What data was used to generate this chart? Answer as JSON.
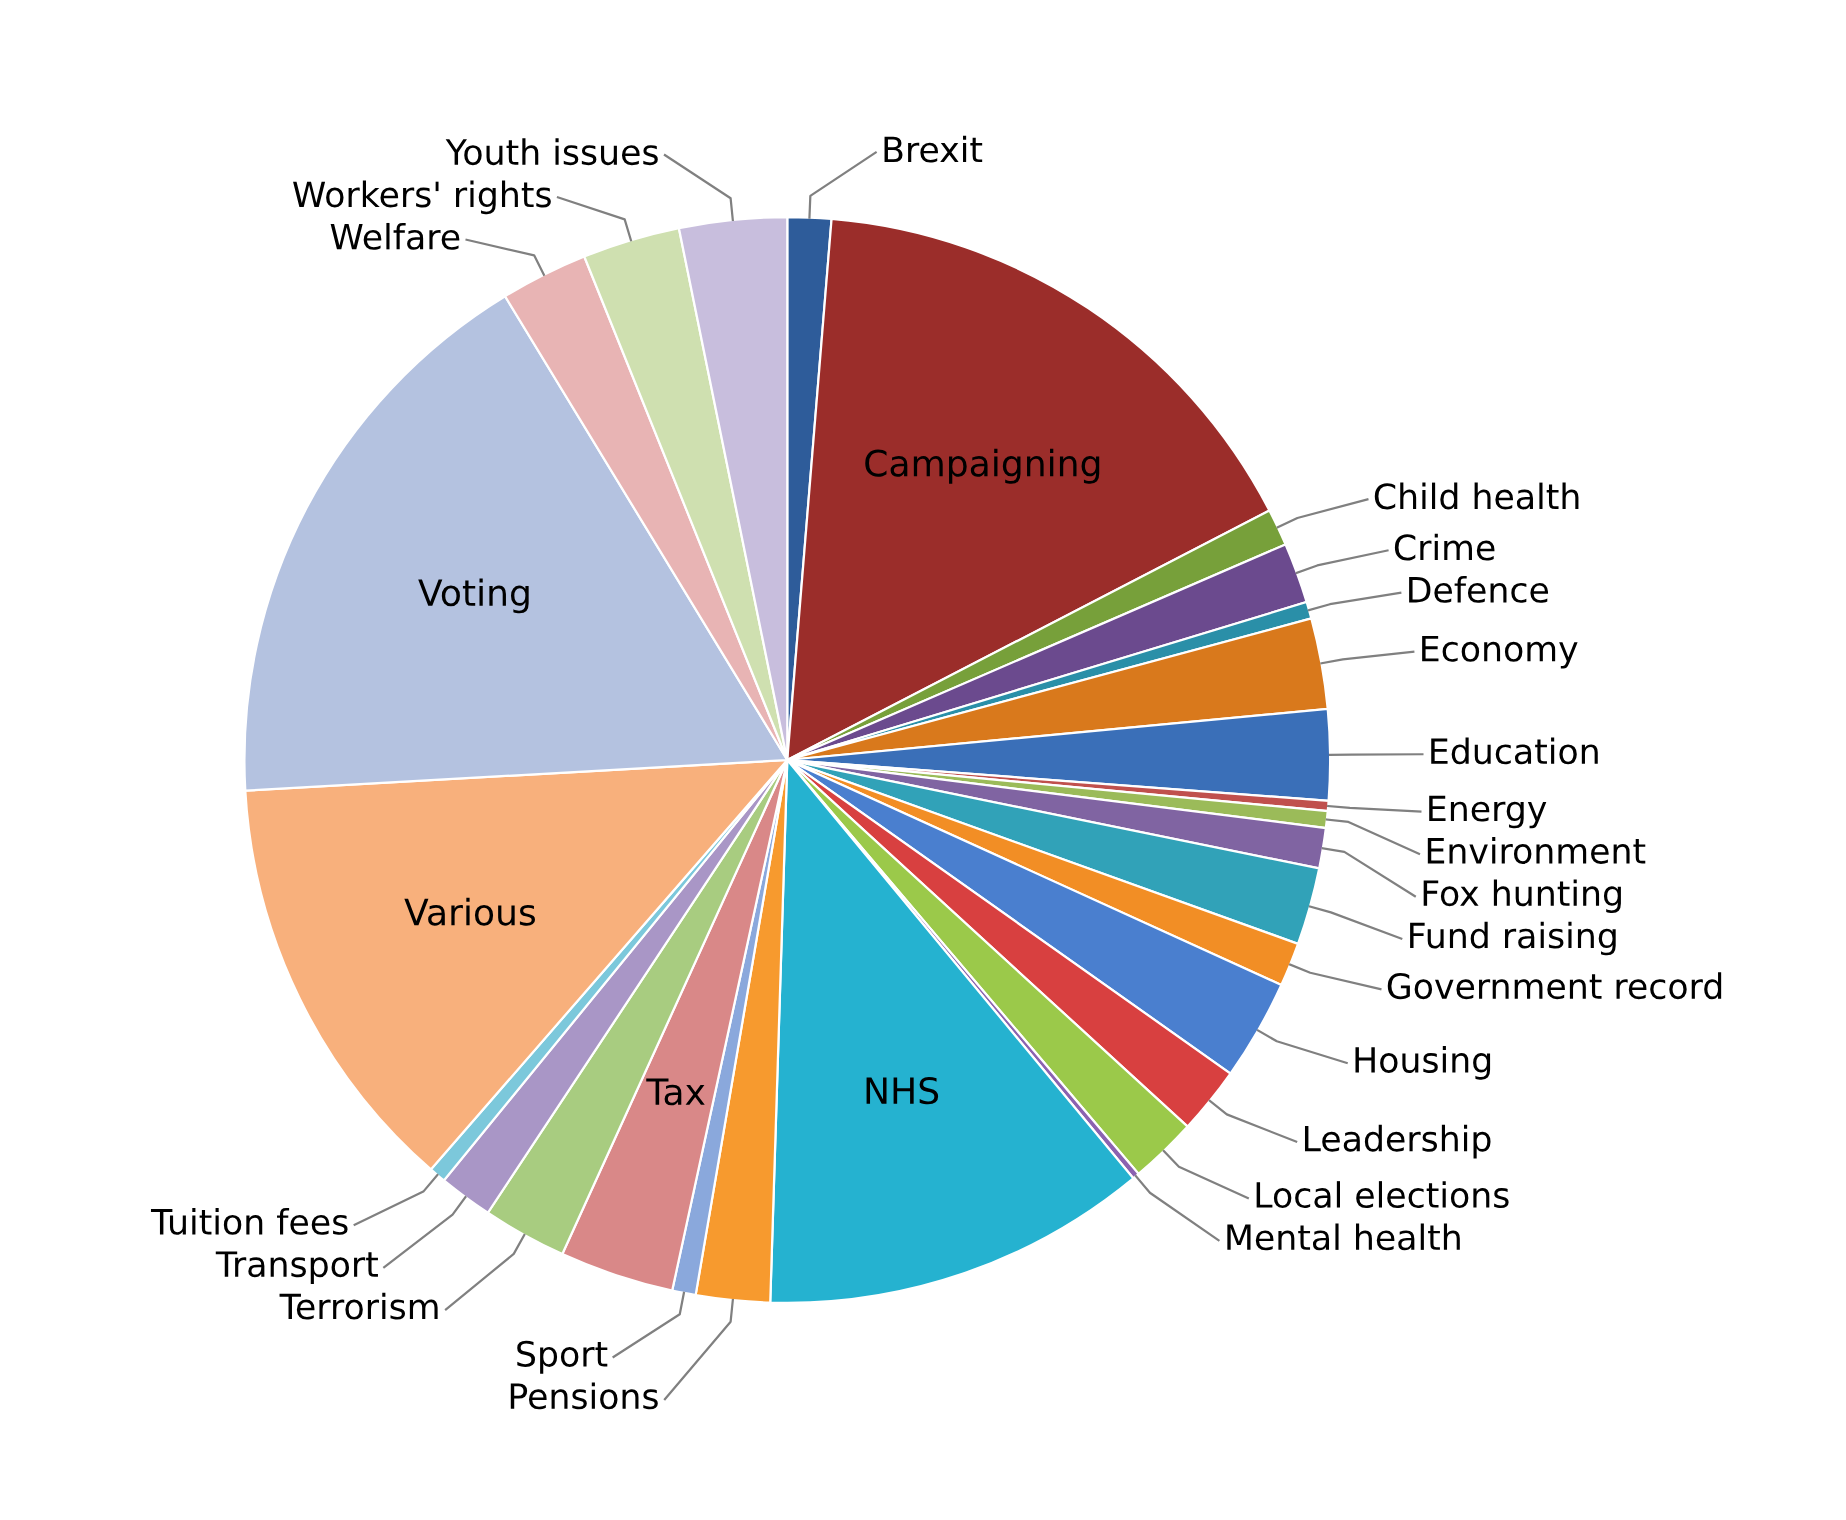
{
  "chart_data": {
    "type": "pie",
    "categories": [
      "Brexit",
      "Campaigning",
      "Child health",
      "Crime",
      "Defence",
      "Economy",
      "Education",
      "Energy",
      "Environment",
      "Fox hunting",
      "Fund raising",
      "Government record",
      "Housing",
      "Leadership",
      "Local elections",
      "Mental health",
      "NHS",
      "Pensions",
      "Sport",
      "Tax",
      "Terrorism",
      "Transport",
      "Tuition fees",
      "Various",
      "Voting",
      "Welfare",
      "Workers' rights",
      "Youth issues"
    ],
    "values": [
      1.3,
      16.1,
      1.1,
      1.8,
      0.5,
      2.7,
      2.7,
      0.3,
      0.5,
      1.2,
      2.3,
      1.3,
      3.0,
      2.0,
      2.0,
      0.2,
      11.5,
      2.2,
      0.7,
      3.4,
      2.5,
      1.6,
      0.5,
      12.7,
      17.2,
      2.6,
      2.9,
      3.2
    ],
    "colors": [
      "#2e5c9a",
      "#9b2d2a",
      "#77a03a",
      "#6b4a8e",
      "#2a8fa8",
      "#d9791c",
      "#3a6fb8",
      "#c0504d",
      "#9bbb59",
      "#8064a2",
      "#31a2b8",
      "#f28e25",
      "#4a7fcf",
      "#d84040",
      "#9bc94a",
      "#8b62b0",
      "#25b2d0",
      "#f79a2e",
      "#8aa8dc",
      "#d98888",
      "#a8cc80",
      "#a996c6",
      "#7cc8db",
      "#f8b07c",
      "#b4c2e0",
      "#e8b4b4",
      "#cfe0b0",
      "#c8bedd"
    ]
  }
}
